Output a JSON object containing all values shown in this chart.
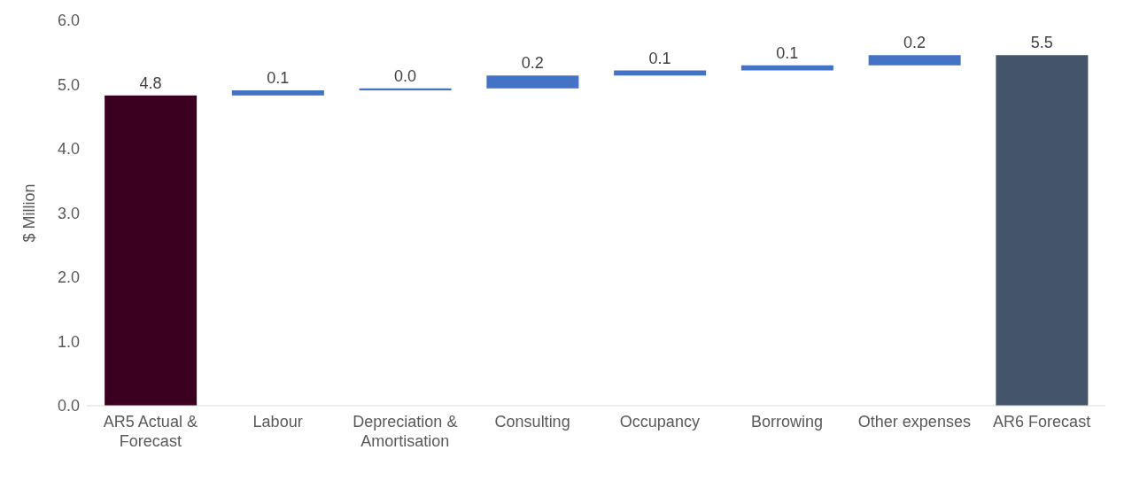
{
  "chart_data": {
    "type": "bar",
    "ylabel": "$ Million",
    "categories": [
      "AR5 Actual & Forecast",
      "Labour",
      "Depreciation & Amortisation",
      "Consulting",
      "Occupancy",
      "Borrowing",
      "Other expenses",
      "AR6 Forecast"
    ],
    "values": [
      4.83,
      0.08,
      0.03,
      0.2,
      0.08,
      0.08,
      0.16,
      5.46
    ],
    "base": [
      0,
      4.83,
      4.91,
      4.94,
      5.14,
      5.22,
      5.3,
      0
    ],
    "colors": [
      "#3b0020",
      "#4472c4",
      "#4472c4",
      "#4472c4",
      "#4472c4",
      "#4472c4",
      "#4472c4",
      "#44546a"
    ],
    "value_labels": [
      "4.8",
      "0.1",
      "0.0",
      "0.2",
      "0.1",
      "0.1",
      "0.2",
      "5.5"
    ],
    "ylim": [
      0,
      6
    ],
    "yticks": [
      {
        "value": 0,
        "label": "0.0"
      },
      {
        "value": 1,
        "label": "1.0"
      },
      {
        "value": 2,
        "label": "2.0"
      },
      {
        "value": 3,
        "label": "3.0"
      },
      {
        "value": 4,
        "label": "4.0"
      },
      {
        "value": 5,
        "label": "5.0"
      },
      {
        "value": 6,
        "label": "6.0"
      }
    ],
    "grid": false,
    "legend": false
  }
}
